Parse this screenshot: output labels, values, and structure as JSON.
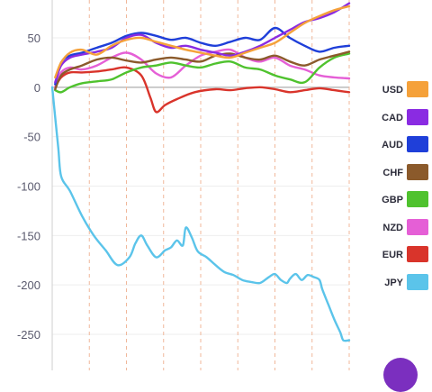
{
  "chart_data": {
    "type": "line",
    "ylim": [
      -265,
      95
    ],
    "xlim": [
      0,
      100
    ],
    "yticks": [
      50,
      0,
      -50,
      -100,
      -150,
      -200,
      -250
    ],
    "xgrid": [
      0,
      12.5,
      25,
      37.5,
      50,
      62.5,
      75,
      87.5,
      100
    ],
    "legend_position": "right",
    "series": [
      {
        "name": "USD",
        "color": "#f5a13a",
        "points": [
          [
            1,
            10
          ],
          [
            3,
            25
          ],
          [
            6,
            35
          ],
          [
            10,
            38
          ],
          [
            15,
            33
          ],
          [
            20,
            42
          ],
          [
            25,
            48
          ],
          [
            30,
            50
          ],
          [
            35,
            46
          ],
          [
            40,
            42
          ],
          [
            45,
            38
          ],
          [
            50,
            35
          ],
          [
            55,
            32
          ],
          [
            60,
            30
          ],
          [
            65,
            35
          ],
          [
            70,
            40
          ],
          [
            75,
            45
          ],
          [
            80,
            55
          ],
          [
            85,
            65
          ],
          [
            90,
            72
          ],
          [
            95,
            78
          ],
          [
            100,
            82
          ]
        ]
      },
      {
        "name": "CAD",
        "color": "#8a2be2",
        "points": [
          [
            1,
            5
          ],
          [
            3,
            22
          ],
          [
            6,
            30
          ],
          [
            10,
            33
          ],
          [
            15,
            36
          ],
          [
            20,
            40
          ],
          [
            25,
            50
          ],
          [
            30,
            53
          ],
          [
            35,
            45
          ],
          [
            40,
            40
          ],
          [
            45,
            42
          ],
          [
            50,
            38
          ],
          [
            55,
            35
          ],
          [
            60,
            32
          ],
          [
            65,
            36
          ],
          [
            70,
            42
          ],
          [
            75,
            50
          ],
          [
            80,
            58
          ],
          [
            85,
            66
          ],
          [
            90,
            70
          ],
          [
            95,
            76
          ],
          [
            100,
            85
          ]
        ]
      },
      {
        "name": "AUD",
        "color": "#1f3fd9",
        "points": [
          [
            1,
            3
          ],
          [
            3,
            25
          ],
          [
            6,
            32
          ],
          [
            10,
            35
          ],
          [
            15,
            40
          ],
          [
            20,
            45
          ],
          [
            25,
            52
          ],
          [
            30,
            55
          ],
          [
            35,
            52
          ],
          [
            40,
            48
          ],
          [
            45,
            50
          ],
          [
            50,
            45
          ],
          [
            55,
            42
          ],
          [
            60,
            46
          ],
          [
            65,
            50
          ],
          [
            70,
            48
          ],
          [
            75,
            60
          ],
          [
            80,
            50
          ],
          [
            85,
            42
          ],
          [
            90,
            36
          ],
          [
            95,
            40
          ],
          [
            100,
            42
          ]
        ]
      },
      {
        "name": "CHF",
        "color": "#8b5a2b",
        "points": [
          [
            1,
            -2
          ],
          [
            3,
            12
          ],
          [
            6,
            18
          ],
          [
            10,
            22
          ],
          [
            15,
            28
          ],
          [
            20,
            30
          ],
          [
            25,
            27
          ],
          [
            30,
            25
          ],
          [
            35,
            28
          ],
          [
            40,
            30
          ],
          [
            45,
            28
          ],
          [
            50,
            26
          ],
          [
            55,
            32
          ],
          [
            60,
            34
          ],
          [
            65,
            30
          ],
          [
            70,
            28
          ],
          [
            75,
            32
          ],
          [
            80,
            26
          ],
          [
            85,
            22
          ],
          [
            90,
            28
          ],
          [
            95,
            32
          ],
          [
            100,
            36
          ]
        ]
      },
      {
        "name": "GBP",
        "color": "#4fc22e",
        "points": [
          [
            1,
            -3
          ],
          [
            3,
            -5
          ],
          [
            6,
            0
          ],
          [
            10,
            4
          ],
          [
            15,
            6
          ],
          [
            20,
            8
          ],
          [
            25,
            15
          ],
          [
            30,
            20
          ],
          [
            35,
            22
          ],
          [
            40,
            25
          ],
          [
            45,
            22
          ],
          [
            50,
            20
          ],
          [
            55,
            24
          ],
          [
            60,
            26
          ],
          [
            65,
            20
          ],
          [
            70,
            18
          ],
          [
            75,
            12
          ],
          [
            80,
            8
          ],
          [
            85,
            5
          ],
          [
            90,
            20
          ],
          [
            95,
            30
          ],
          [
            100,
            34
          ]
        ]
      },
      {
        "name": "NZD",
        "color": "#e55fd6",
        "points": [
          [
            1,
            0
          ],
          [
            3,
            15
          ],
          [
            6,
            20
          ],
          [
            10,
            18
          ],
          [
            15,
            22
          ],
          [
            20,
            30
          ],
          [
            25,
            35
          ],
          [
            30,
            28
          ],
          [
            35,
            14
          ],
          [
            40,
            10
          ],
          [
            45,
            22
          ],
          [
            50,
            32
          ],
          [
            55,
            36
          ],
          [
            60,
            38
          ],
          [
            65,
            30
          ],
          [
            70,
            26
          ],
          [
            75,
            30
          ],
          [
            80,
            22
          ],
          [
            85,
            18
          ],
          [
            90,
            12
          ],
          [
            95,
            10
          ],
          [
            100,
            9
          ]
        ]
      },
      {
        "name": "EUR",
        "color": "#d9342b",
        "points": [
          [
            1,
            0
          ],
          [
            3,
            10
          ],
          [
            6,
            15
          ],
          [
            10,
            15
          ],
          [
            15,
            16
          ],
          [
            20,
            18
          ],
          [
            25,
            20
          ],
          [
            30,
            12
          ],
          [
            33,
            -10
          ],
          [
            35,
            -25
          ],
          [
            38,
            -18
          ],
          [
            42,
            -12
          ],
          [
            48,
            -5
          ],
          [
            55,
            -2
          ],
          [
            60,
            -3
          ],
          [
            65,
            -1
          ],
          [
            70,
            0
          ],
          [
            75,
            -2
          ],
          [
            80,
            -5
          ],
          [
            85,
            -3
          ],
          [
            90,
            -1
          ],
          [
            95,
            -3
          ],
          [
            100,
            -5
          ]
        ]
      },
      {
        "name": "JPY",
        "color": "#5bc4ea",
        "points": [
          [
            0,
            0
          ],
          [
            2,
            -60
          ],
          [
            3,
            -90
          ],
          [
            6,
            -105
          ],
          [
            10,
            -130
          ],
          [
            14,
            -150
          ],
          [
            18,
            -165
          ],
          [
            22,
            -180
          ],
          [
            26,
            -172
          ],
          [
            28,
            -158
          ],
          [
            30,
            -150
          ],
          [
            32,
            -160
          ],
          [
            35,
            -172
          ],
          [
            38,
            -165
          ],
          [
            40,
            -162
          ],
          [
            42,
            -155
          ],
          [
            44,
            -160
          ],
          [
            45,
            -142
          ],
          [
            47,
            -152
          ],
          [
            49,
            -166
          ],
          [
            52,
            -172
          ],
          [
            55,
            -180
          ],
          [
            58,
            -187
          ],
          [
            61,
            -190
          ],
          [
            64,
            -195
          ],
          [
            67,
            -197
          ],
          [
            70,
            -198
          ],
          [
            73,
            -192
          ],
          [
            75,
            -189
          ],
          [
            77,
            -195
          ],
          [
            79,
            -198
          ],
          [
            80,
            -194
          ],
          [
            82,
            -189
          ],
          [
            84,
            -195
          ],
          [
            86,
            -190
          ],
          [
            88,
            -192
          ],
          [
            90,
            -195
          ],
          [
            91,
            -205
          ],
          [
            93,
            -220
          ],
          [
            95,
            -235
          ],
          [
            97,
            -248
          ],
          [
            98,
            -256
          ],
          [
            100,
            -256
          ]
        ]
      }
    ]
  }
}
